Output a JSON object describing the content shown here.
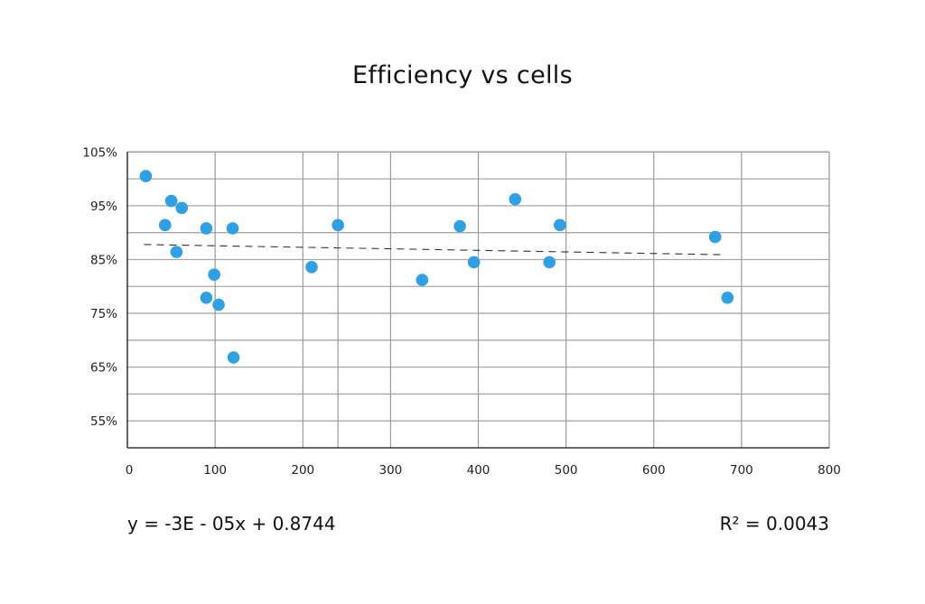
{
  "chart_data": {
    "type": "scatter",
    "title": "Efficiency vs cells",
    "xlabel": "",
    "ylabel": "",
    "xlim": [
      0,
      800
    ],
    "ylim": [
      50,
      105
    ],
    "x_ticks": [
      0,
      100,
      200,
      300,
      400,
      500,
      600,
      700,
      800
    ],
    "x_tick_labels": [
      "0",
      "100",
      "200",
      "300",
      "400",
      "500",
      "600",
      "700",
      "800"
    ],
    "y_ticks": [
      105,
      95,
      85,
      75,
      65,
      55
    ],
    "y_tick_labels": [
      "105%",
      "95%",
      "85%",
      "75%",
      "65%",
      "55%"
    ],
    "y_gridlines": [
      105,
      100,
      95,
      90,
      85,
      80,
      75,
      70,
      65,
      60,
      55,
      50
    ],
    "x_gridlines": [
      100,
      200,
      240,
      300,
      400,
      500,
      600,
      700
    ],
    "grid": true,
    "legend": "none",
    "marker_color": "#2fa0e4",
    "series": [
      {
        "name": "Efficiency",
        "points": [
          {
            "x": 21,
            "y": 100.5
          },
          {
            "x": 50,
            "y": 95.9
          },
          {
            "x": 62,
            "y": 94.6
          },
          {
            "x": 43,
            "y": 91.4
          },
          {
            "x": 56,
            "y": 86.4
          },
          {
            "x": 90,
            "y": 90.8
          },
          {
            "x": 120,
            "y": 90.8
          },
          {
            "x": 99,
            "y": 82.2
          },
          {
            "x": 90,
            "y": 77.9
          },
          {
            "x": 104,
            "y": 76.6
          },
          {
            "x": 121,
            "y": 66.8
          },
          {
            "x": 210,
            "y": 83.6
          },
          {
            "x": 240,
            "y": 91.4
          },
          {
            "x": 336,
            "y": 81.2
          },
          {
            "x": 379,
            "y": 91.2
          },
          {
            "x": 395,
            "y": 84.5
          },
          {
            "x": 442,
            "y": 96.2
          },
          {
            "x": 481,
            "y": 84.5
          },
          {
            "x": 493,
            "y": 91.4
          },
          {
            "x": 670,
            "y": 89.2
          },
          {
            "x": 684,
            "y": 77.9
          }
        ]
      }
    ],
    "trendline": {
      "type": "linear",
      "x_start": 19,
      "y_start": 87.8,
      "x_end": 678,
      "y_end": 85.9,
      "equation": "y = -3E - 05x + 0.8744",
      "r_squared": "R² = 0.0043"
    }
  }
}
